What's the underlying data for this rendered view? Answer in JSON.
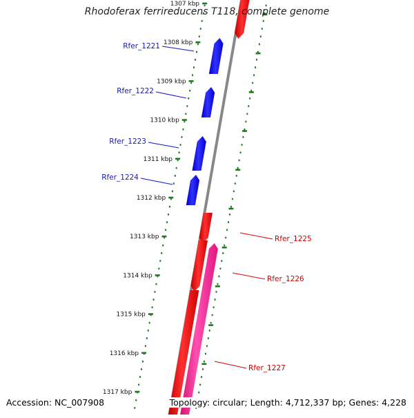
{
  "title": "Rhodoferax ferrireducens T118, complete genome",
  "accession_label": "Accession: NC_007908",
  "topology_label": "Topology: circular; Length: 4,712,337 bp; Genes: 4,228",
  "ticks": [
    "1307 kbp",
    "1308 kbp",
    "1309 kbp",
    "1310 kbp",
    "1311 kbp",
    "1312 kbp",
    "1313 kbp",
    "1314 kbp",
    "1315 kbp",
    "1316 kbp",
    "1317 kbp"
  ],
  "genes": [
    {
      "name": "Rfer_1221",
      "strand": "forward",
      "color": "#1010e0"
    },
    {
      "name": "Rfer_1222",
      "strand": "forward",
      "color": "#1010e0"
    },
    {
      "name": "Rfer_1223",
      "strand": "forward",
      "color": "#1010e0"
    },
    {
      "name": "Rfer_1224",
      "strand": "forward",
      "color": "#1010e0"
    },
    {
      "name": "Rfer_1225",
      "strand": "reverse",
      "color": "#ff1010"
    },
    {
      "name": "Rfer_1226",
      "strand": "reverse",
      "color": "#ff1010"
    },
    {
      "name": "Rfer_1227",
      "strand": "reverse",
      "color": "#ff2a9a"
    }
  ],
  "colors": {
    "forward_label": "#1a1aa8",
    "reverse_label": "#cc0000",
    "tick": "#227722",
    "backbone": "#888888"
  }
}
